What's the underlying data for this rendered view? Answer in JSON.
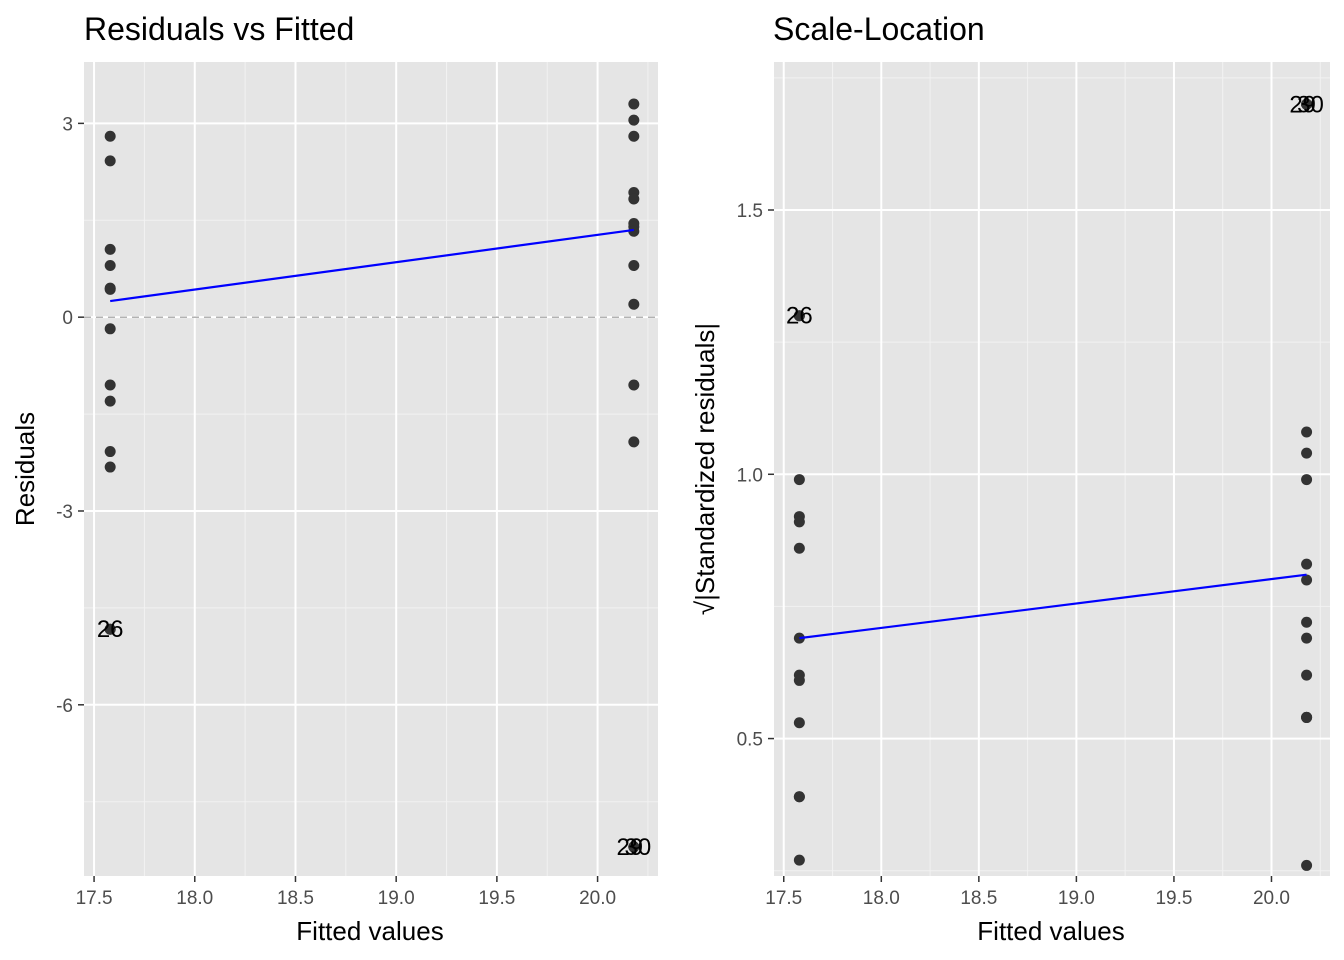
{
  "chart_data": [
    {
      "type": "scatter",
      "title": "Residuals vs Fitted",
      "xlabel": "Fitted values",
      "ylabel": "Residuals",
      "xlim": [
        17.45,
        20.3
      ],
      "ylim": [
        -8.65,
        3.95
      ],
      "x_ticks": [
        17.5,
        18.0,
        18.5,
        19.0,
        19.5,
        20.0
      ],
      "x_tick_labels": [
        "17.5",
        "18.0",
        "18.5",
        "19.0",
        "19.5",
        "20.0"
      ],
      "y_ticks": [
        -6,
        -3,
        0,
        3
      ],
      "y_tick_labels": [
        "-6",
        "-3",
        "0",
        "3"
      ],
      "grid": true,
      "reference_line": {
        "y": 0,
        "style": "dashed",
        "color": "#999999"
      },
      "points": {
        "color": "#333333",
        "x": [
          17.58,
          17.58,
          17.58,
          17.58,
          17.58,
          17.58,
          17.58,
          17.58,
          17.58,
          17.58,
          17.58,
          17.58,
          17.58,
          20.18,
          20.18,
          20.18,
          20.18,
          20.18,
          20.18,
          20.18,
          20.18,
          20.18,
          20.18,
          20.18,
          20.18,
          20.18,
          20.18,
          20.18
        ],
        "y": [
          2.8,
          2.42,
          1.05,
          0.8,
          0.45,
          0.43,
          -0.18,
          -1.05,
          -1.3,
          -2.08,
          -2.32,
          -4.83,
          -4.83,
          3.3,
          3.05,
          2.8,
          1.93,
          1.83,
          1.45,
          1.4,
          1.33,
          0.8,
          0.2,
          -1.05,
          -1.93,
          -8.2,
          -8.2,
          -8.2
        ]
      },
      "smooth": {
        "color": "#0000ff",
        "x": [
          17.58,
          20.18
        ],
        "y": [
          0.25,
          1.35
        ]
      },
      "point_labels": [
        {
          "text": "26",
          "x": 17.58,
          "y": -4.83
        },
        {
          "text": "29",
          "x": 20.16,
          "y": -8.2
        },
        {
          "text": "30",
          "x": 20.2,
          "y": -8.2
        }
      ]
    },
    {
      "type": "scatter",
      "title": "Scale-Location",
      "xlabel": "Fitted values",
      "ylabel": "√|Standardized residuals|",
      "xlim": [
        17.45,
        20.3
      ],
      "ylim": [
        0.24,
        1.78
      ],
      "x_ticks": [
        17.5,
        18.0,
        18.5,
        19.0,
        19.5,
        20.0
      ],
      "x_tick_labels": [
        "17.5",
        "18.0",
        "18.5",
        "19.0",
        "19.5",
        "20.0"
      ],
      "y_ticks": [
        0.5,
        1.0,
        1.5
      ],
      "y_tick_labels": [
        "0.5",
        "1.0",
        "1.5"
      ],
      "grid": true,
      "points": {
        "color": "#333333",
        "x": [
          17.58,
          17.58,
          17.58,
          17.58,
          17.58,
          17.58,
          17.58,
          17.58,
          17.58,
          17.58,
          17.58,
          17.58,
          17.58,
          20.18,
          20.18,
          20.18,
          20.18,
          20.18,
          20.18,
          20.18,
          20.18,
          20.18,
          20.18,
          20.18,
          20.18,
          20.18,
          20.18,
          20.18
        ],
        "y": [
          1.3,
          1.3,
          0.99,
          0.92,
          0.91,
          0.86,
          0.69,
          0.62,
          0.61,
          0.53,
          0.39,
          0.39,
          0.27,
          1.7,
          1.7,
          1.7,
          1.08,
          1.04,
          0.99,
          0.83,
          0.8,
          0.72,
          0.69,
          0.62,
          0.54,
          0.54,
          0.54,
          0.26
        ]
      },
      "smooth": {
        "color": "#0000ff",
        "x": [
          17.58,
          20.18
        ],
        "y": [
          0.69,
          0.81
        ]
      },
      "point_labels": [
        {
          "text": "26",
          "x": 17.58,
          "y": 1.3
        },
        {
          "text": "29",
          "x": 20.16,
          "y": 1.7
        },
        {
          "text": "30",
          "x": 20.2,
          "y": 1.7
        }
      ]
    }
  ]
}
